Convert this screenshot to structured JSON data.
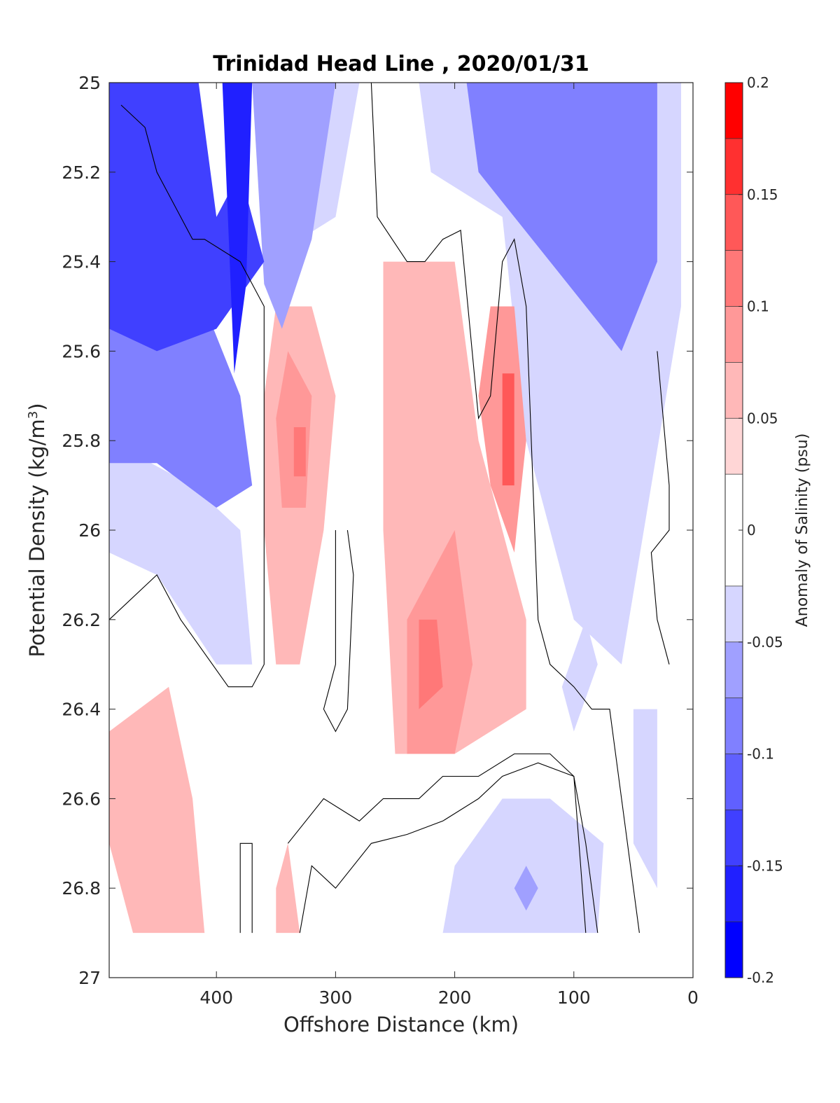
{
  "chart_data": {
    "type": "heatmap",
    "title": "Trinidad Head Line , 2020/01/31",
    "xlabel": "Offshore Distance (km)",
    "ylabel_main": "Potential Density (kg/m",
    "ylabel_sup": "3",
    "ylabel_close": ")",
    "colorbar_label": "Anomaly of Salinity (psu)",
    "x_reversed": true,
    "xlim": [
      0,
      490
    ],
    "ylim": [
      25,
      27
    ],
    "y_reversed": true,
    "x_ticks": [
      400,
      300,
      200,
      100,
      0
    ],
    "x_tick_labels": [
      "400",
      "300",
      "200",
      "100",
      "0"
    ],
    "y_ticks": [
      25,
      25.2,
      25.4,
      25.6,
      25.8,
      26,
      26.2,
      26.4,
      26.6,
      26.8,
      27
    ],
    "y_tick_labels": [
      "25",
      "25.2",
      "25.4",
      "25.6",
      "25.8",
      "26",
      "26.2",
      "26.4",
      "26.6",
      "26.8",
      "27"
    ],
    "clim": [
      -0.2,
      0.2
    ],
    "colorbar_ticks": [
      0.2,
      0.15,
      0.1,
      0.05,
      0,
      -0.05,
      -0.1,
      -0.15,
      -0.2
    ],
    "colorbar_tick_labels": [
      "0.2",
      "0.15",
      "0.1",
      "0.05",
      "0",
      "-0.05",
      "-0.1",
      "-0.15",
      "-0.2"
    ],
    "levels": [
      {
        "lo": -0.2,
        "hi": -0.175,
        "color": "#0000ff"
      },
      {
        "lo": -0.175,
        "hi": -0.15,
        "color": "#2020ff"
      },
      {
        "lo": -0.15,
        "hi": -0.125,
        "color": "#4040ff"
      },
      {
        "lo": -0.125,
        "hi": -0.1,
        "color": "#6060ff"
      },
      {
        "lo": -0.1,
        "hi": -0.075,
        "color": "#8080ff"
      },
      {
        "lo": -0.075,
        "hi": -0.05,
        "color": "#a0a0ff"
      },
      {
        "lo": -0.05,
        "hi": -0.025,
        "color": "#d6d6ff"
      },
      {
        "lo": -0.025,
        "hi": 0.025,
        "color": "#ffffff"
      },
      {
        "lo": 0.025,
        "hi": 0.05,
        "color": "#ffd6d6"
      },
      {
        "lo": 0.05,
        "hi": 0.075,
        "color": "#ffb8b8"
      },
      {
        "lo": 0.075,
        "hi": 0.1,
        "color": "#ff9898"
      },
      {
        "lo": 0.1,
        "hi": 0.125,
        "color": "#ff7878"
      },
      {
        "lo": 0.125,
        "hi": 0.15,
        "color": "#ff5858"
      },
      {
        "lo": 0.15,
        "hi": 0.175,
        "color": "#ff3030"
      },
      {
        "lo": 0.175,
        "hi": 0.2,
        "color": "#ff0000"
      }
    ],
    "data_extent": {
      "x": [
        10,
        490
      ],
      "y": [
        25,
        26.9
      ]
    },
    "regions": [
      {
        "name": "strong-negative-west",
        "level": -0.15,
        "points": [
          [
            490,
            25
          ],
          [
            415,
            25
          ],
          [
            400,
            25.3
          ],
          [
            380,
            25.2
          ],
          [
            360,
            25.4
          ],
          [
            400,
            25.55
          ],
          [
            450,
            25.6
          ],
          [
            490,
            25.55
          ]
        ]
      },
      {
        "name": "negative-west-band",
        "level": -0.1,
        "points": [
          [
            490,
            25
          ],
          [
            420,
            25
          ],
          [
            410,
            25.5
          ],
          [
            380,
            25.7
          ],
          [
            370,
            25.9
          ],
          [
            400,
            25.95
          ],
          [
            450,
            25.85
          ],
          [
            490,
            25.85
          ]
        ]
      },
      {
        "name": "negative-west-core",
        "level": -0.175,
        "points": [
          [
            395,
            25
          ],
          [
            370,
            25
          ],
          [
            375,
            25.45
          ],
          [
            385,
            25.65
          ]
        ]
      },
      {
        "name": "negative-west-fringe",
        "level": -0.05,
        "points": [
          [
            490,
            25.8
          ],
          [
            420,
            25.9
          ],
          [
            380,
            26
          ],
          [
            370,
            26.3
          ],
          [
            400,
            26.3
          ],
          [
            450,
            26.1
          ],
          [
            490,
            26.05
          ]
        ]
      },
      {
        "name": "negative-offshore-upper",
        "level": -0.075,
        "points": [
          [
            370,
            25
          ],
          [
            300,
            25
          ],
          [
            320,
            25.35
          ],
          [
            345,
            25.55
          ],
          [
            360,
            25.45
          ]
        ]
      },
      {
        "name": "negative-offshore-light",
        "level": -0.05,
        "points": [
          [
            300,
            25
          ],
          [
            280,
            25
          ],
          [
            300,
            25.3
          ],
          [
            330,
            25.35
          ],
          [
            350,
            25.35
          ]
        ]
      },
      {
        "name": "negative-inshore-band",
        "level": -0.1,
        "points": [
          [
            190,
            25
          ],
          [
            30,
            25
          ],
          [
            30,
            25.4
          ],
          [
            60,
            25.6
          ],
          [
            120,
            25.4
          ],
          [
            150,
            25.3
          ],
          [
            180,
            25.2
          ]
        ]
      },
      {
        "name": "negative-inshore-fringe",
        "level": -0.05,
        "points": [
          [
            230,
            25
          ],
          [
            10,
            25
          ],
          [
            10,
            25.5
          ],
          [
            60,
            26.3
          ],
          [
            100,
            26.2
          ],
          [
            140,
            25.8
          ],
          [
            160,
            25.3
          ],
          [
            220,
            25.2
          ]
        ]
      },
      {
        "name": "negative-inshore-deep",
        "level": -0.05,
        "points": [
          [
            90,
            26.2
          ],
          [
            80,
            26.3
          ],
          [
            100,
            26.45
          ],
          [
            110,
            26.35
          ]
        ]
      },
      {
        "name": "negative-deep-bottom",
        "level": -0.05,
        "points": [
          [
            210,
            26.9
          ],
          [
            80,
            26.9
          ],
          [
            75,
            26.7
          ],
          [
            120,
            26.6
          ],
          [
            160,
            26.6
          ],
          [
            200,
            26.75
          ]
        ]
      },
      {
        "name": "negative-deep-core",
        "level": -0.075,
        "points": [
          [
            150,
            26.8
          ],
          [
            140,
            26.75
          ],
          [
            130,
            26.8
          ],
          [
            140,
            26.85
          ]
        ]
      },
      {
        "name": "negative-shore-deep",
        "level": -0.05,
        "points": [
          [
            50,
            26.4
          ],
          [
            30,
            26.4
          ],
          [
            30,
            26.8
          ],
          [
            50,
            26.7
          ]
        ]
      },
      {
        "name": "positive-offshore",
        "level": 0.05,
        "points": [
          [
            350,
            25.5
          ],
          [
            320,
            25.5
          ],
          [
            300,
            25.7
          ],
          [
            310,
            26
          ],
          [
            330,
            26.3
          ],
          [
            350,
            26.3
          ],
          [
            360,
            26
          ],
          [
            360,
            25.7
          ]
        ]
      },
      {
        "name": "positive-offshore-core",
        "level": 0.075,
        "points": [
          [
            340,
            25.6
          ],
          [
            320,
            25.7
          ],
          [
            325,
            25.95
          ],
          [
            345,
            25.95
          ],
          [
            350,
            25.75
          ]
        ]
      },
      {
        "name": "positive-offshore-max",
        "level": 0.1,
        "points": [
          [
            335,
            25.77
          ],
          [
            325,
            25.77
          ],
          [
            325,
            25.88
          ],
          [
            335,
            25.88
          ]
        ]
      },
      {
        "name": "positive-central",
        "level": 0.05,
        "points": [
          [
            260,
            25.4
          ],
          [
            200,
            25.4
          ],
          [
            180,
            25.8
          ],
          [
            140,
            26.2
          ],
          [
            140,
            26.4
          ],
          [
            200,
            26.5
          ],
          [
            250,
            26.5
          ],
          [
            260,
            26.0
          ]
        ]
      },
      {
        "name": "positive-central-core",
        "level": 0.075,
        "points": [
          [
            240,
            26.2
          ],
          [
            200,
            26
          ],
          [
            185,
            26.3
          ],
          [
            200,
            26.5
          ],
          [
            240,
            26.5
          ]
        ]
      },
      {
        "name": "positive-central-max",
        "level": 0.1,
        "points": [
          [
            230,
            26.2
          ],
          [
            215,
            26.2
          ],
          [
            210,
            26.35
          ],
          [
            230,
            26.4
          ]
        ]
      },
      {
        "name": "positive-inshore",
        "level": 0.075,
        "points": [
          [
            170,
            25.5
          ],
          [
            150,
            25.5
          ],
          [
            140,
            25.8
          ],
          [
            150,
            26.05
          ],
          [
            170,
            25.9
          ],
          [
            180,
            25.7
          ]
        ]
      },
      {
        "name": "positive-inshore-max",
        "level": 0.125,
        "points": [
          [
            160,
            25.65
          ],
          [
            150,
            25.65
          ],
          [
            150,
            25.9
          ],
          [
            160,
            25.9
          ]
        ]
      },
      {
        "name": "positive-deep-west",
        "level": 0.05,
        "points": [
          [
            490,
            26.45
          ],
          [
            440,
            26.35
          ],
          [
            420,
            26.6
          ],
          [
            410,
            26.9
          ],
          [
            470,
            26.9
          ],
          [
            490,
            26.7
          ]
        ]
      },
      {
        "name": "positive-deep-mid",
        "level": 0.05,
        "points": [
          [
            350,
            26.8
          ],
          [
            340,
            26.7
          ],
          [
            330,
            26.9
          ],
          [
            350,
            26.9
          ]
        ]
      }
    ],
    "contours": [
      {
        "name": "zero-contour-offshore-left",
        "points": [
          [
            490,
            26.2
          ],
          [
            450,
            26.1
          ],
          [
            430,
            26.2
          ],
          [
            390,
            26.35
          ],
          [
            370,
            26.35
          ],
          [
            360,
            26.3
          ],
          [
            360,
            25.5
          ],
          [
            380,
            25.4
          ],
          [
            410,
            25.35
          ],
          [
            420,
            25.35
          ],
          [
            430,
            25.3
          ],
          [
            450,
            25.2
          ],
          [
            460,
            25.1
          ],
          [
            480,
            25.05
          ]
        ]
      },
      {
        "name": "zero-contour-central",
        "points": [
          [
            270,
            25
          ],
          [
            265,
            25.3
          ],
          [
            240,
            25.4
          ],
          [
            225,
            25.4
          ],
          [
            210,
            25.35
          ],
          [
            195,
            25.33
          ],
          [
            180,
            25.75
          ],
          [
            170,
            25.7
          ],
          [
            160,
            25.4
          ],
          [
            150,
            25.35
          ],
          [
            140,
            25.5
          ],
          [
            130,
            26.2
          ],
          [
            120,
            26.3
          ],
          [
            100,
            26.35
          ],
          [
            85,
            26.4
          ],
          [
            70,
            26.4
          ],
          [
            60,
            26.6
          ],
          [
            55,
            26.7
          ],
          [
            45,
            26.9
          ]
        ]
      },
      {
        "name": "zero-contour-deep-band",
        "points": [
          [
            340,
            26.7
          ],
          [
            310,
            26.6
          ],
          [
            280,
            26.65
          ],
          [
            260,
            26.6
          ],
          [
            230,
            26.6
          ],
          [
            210,
            26.55
          ],
          [
            180,
            26.55
          ],
          [
            150,
            26.5
          ],
          [
            120,
            26.5
          ],
          [
            100,
            26.55
          ],
          [
            90,
            26.7
          ],
          [
            80,
            26.9
          ]
        ]
      },
      {
        "name": "zero-contour-deep-lower",
        "points": [
          [
            330,
            26.9
          ],
          [
            320,
            26.75
          ],
          [
            300,
            26.8
          ],
          [
            270,
            26.7
          ],
          [
            240,
            26.68
          ],
          [
            210,
            26.65
          ],
          [
            180,
            26.6
          ],
          [
            160,
            26.55
          ],
          [
            130,
            26.52
          ],
          [
            100,
            26.55
          ],
          [
            90,
            26.9
          ]
        ]
      },
      {
        "name": "zero-contour-west-loop",
        "points": [
          [
            380,
            26.9
          ],
          [
            380,
            26.7
          ],
          [
            370,
            26.7
          ],
          [
            370,
            26.9
          ]
        ]
      },
      {
        "name": "zero-contour-mid-loop",
        "points": [
          [
            300,
            26.0
          ],
          [
            300,
            26.3
          ],
          [
            310,
            26.4
          ],
          [
            300,
            26.45
          ],
          [
            290,
            26.4
          ],
          [
            285,
            26.1
          ],
          [
            290,
            26.0
          ]
        ]
      },
      {
        "name": "zero-contour-shore",
        "points": [
          [
            30,
            25.6
          ],
          [
            20,
            25.9
          ],
          [
            20,
            26.0
          ],
          [
            35,
            26.05
          ],
          [
            30,
            26.2
          ],
          [
            20,
            26.3
          ]
        ]
      }
    ]
  }
}
